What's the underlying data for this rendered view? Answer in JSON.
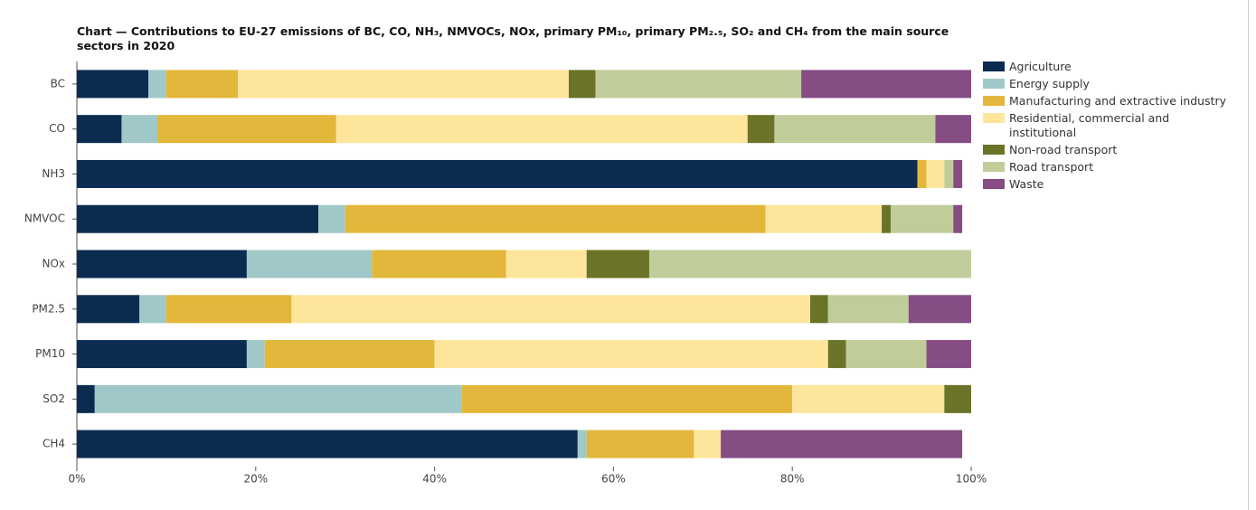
{
  "chart_data": {
    "type": "stacked-barh",
    "title": "Chart — Contributions to EU-27 emissions of BC, CO, NH₃, NMVOCs, NOx, primary PM₁₀, primary PM₂.₅, SO₂ and CH₄ from the main source sectors in 2020",
    "categories": [
      "BC",
      "CO",
      "NH3",
      "NMVOC",
      "NOx",
      "PM2.5",
      "PM10",
      "SO2",
      "CH4"
    ],
    "series": [
      {
        "name": "Agriculture",
        "color": "#0b2c50",
        "values": [
          8,
          5,
          94,
          27,
          19,
          7,
          19,
          2,
          56
        ]
      },
      {
        "name": "Energy supply",
        "color": "#a0c8c8",
        "values": [
          2,
          4,
          0,
          3,
          14,
          3,
          2,
          41,
          1
        ]
      },
      {
        "name": "Manufacturing and extractive industry",
        "color": "#e3b73c",
        "values": [
          8,
          20,
          1,
          47,
          15,
          14,
          19,
          37,
          12
        ]
      },
      {
        "name": "Residential, commercial and institutional",
        "color": "#fde59b",
        "values": [
          37,
          46,
          2,
          13,
          9,
          58,
          44,
          17,
          3
        ]
      },
      {
        "name": "Non-road transport",
        "color": "#6b7328",
        "values": [
          3,
          3,
          0,
          1,
          7,
          2,
          2,
          3,
          0
        ]
      },
      {
        "name": "Road transport",
        "color": "#c0cd9a",
        "values": [
          23,
          18,
          1,
          7,
          36,
          9,
          9,
          0,
          0
        ]
      },
      {
        "name": "Waste",
        "color": "#854d84",
        "values": [
          19,
          4,
          1,
          1,
          0,
          7,
          5,
          0,
          27
        ]
      }
    ],
    "xlim": [
      0,
      100
    ],
    "xticks": [
      {
        "value": 0,
        "label": "0%"
      },
      {
        "value": 20,
        "label": "20%"
      },
      {
        "value": 40,
        "label": "40%"
      },
      {
        "value": 60,
        "label": "60%"
      },
      {
        "value": 80,
        "label": "80%"
      },
      {
        "value": 100,
        "label": "100%"
      }
    ],
    "grid": false,
    "legend": "right"
  }
}
